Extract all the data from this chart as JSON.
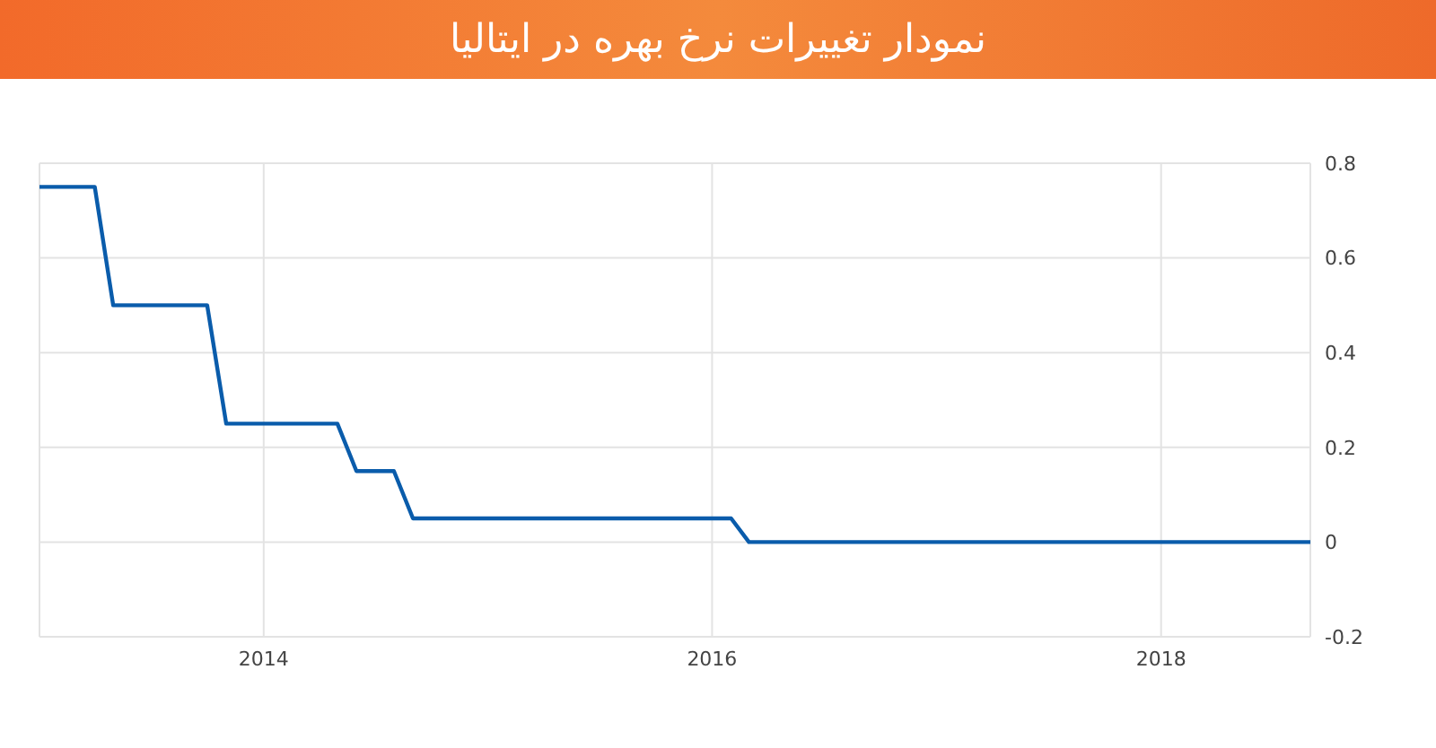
{
  "chart_data": {
    "type": "line",
    "title": "نمودار تغییرات نرخ بهره در ایتالیا",
    "x": [
      "2013-01",
      "2013-04",
      "2013-05",
      "2013-10",
      "2013-11",
      "2014-05",
      "2014-06",
      "2014-08",
      "2014-09",
      "2016-02",
      "2016-03",
      "2018-09"
    ],
    "series": [
      {
        "color": "#0a5cab",
        "values": [
          0.75,
          0.75,
          0.5,
          0.5,
          0.25,
          0.25,
          0.15,
          0.15,
          0.05,
          0.05,
          0,
          0
        ]
      }
    ],
    "xlim": [
      "2013-01",
      "2018-09"
    ],
    "xticks": [
      "2014",
      "2016",
      "2018"
    ],
    "ylim": [
      -0.2,
      0.8
    ],
    "yticks": [
      -0.2,
      0,
      0.2,
      0.4,
      0.6,
      0.8
    ],
    "grid": true,
    "legend": false,
    "marker": "none",
    "line_style": "solid"
  }
}
